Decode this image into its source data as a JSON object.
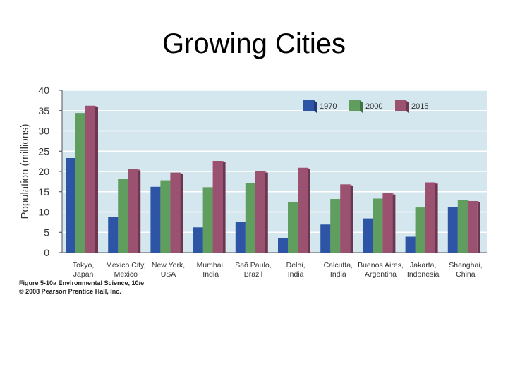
{
  "slide": {
    "title": "Growing Cities"
  },
  "credit": {
    "line1": "Figure 5-10a  Environmental Science, 10/e",
    "line2": "© 2008 Pearson Prentice Hall, Inc."
  },
  "colors": {
    "plot_bg": "#d4e6ee",
    "grid": "#ffffff",
    "series": [
      "#2e55a5",
      "#5f9e5e",
      "#9b5270"
    ],
    "series_side": [
      "#1f3c7a",
      "#3f7340",
      "#6c3650"
    ],
    "series_top": [
      "#4a72c2",
      "#7bb87a",
      "#b87290"
    ]
  },
  "chart_data": {
    "type": "bar",
    "title": "",
    "xlabel": "",
    "ylabel": "Population (millions)",
    "ylim": [
      0,
      40
    ],
    "yticks": [
      0,
      5,
      10,
      15,
      20,
      25,
      30,
      35,
      40
    ],
    "grid": true,
    "legend_position": "top-right",
    "categories": [
      [
        "Tokyo,",
        "Japan"
      ],
      [
        "Mexico City,",
        "Mexico"
      ],
      [
        "New York,",
        "USA"
      ],
      [
        "Mumbai,",
        "India"
      ],
      [
        "Saõ Paulo,",
        "Brazil"
      ],
      [
        "Delhi,",
        "India"
      ],
      [
        "Calcutta,",
        "India"
      ],
      [
        "Buenos Aires,",
        "Argentina"
      ],
      [
        "Jakarta,",
        "Indonesia"
      ],
      [
        "Shanghai,",
        "China"
      ]
    ],
    "series": [
      {
        "name": "1970",
        "values": [
          23.3,
          8.8,
          16.2,
          6.2,
          7.6,
          3.5,
          6.9,
          8.4,
          3.9,
          11.2
        ]
      },
      {
        "name": "2000",
        "values": [
          34.4,
          18.1,
          17.8,
          16.1,
          17.1,
          12.4,
          13.2,
          13.3,
          11.1,
          12.9
        ]
      },
      {
        "name": "2015",
        "values": [
          36.2,
          20.6,
          19.7,
          22.6,
          20.0,
          20.9,
          16.8,
          14.6,
          17.3,
          12.7
        ]
      }
    ]
  }
}
